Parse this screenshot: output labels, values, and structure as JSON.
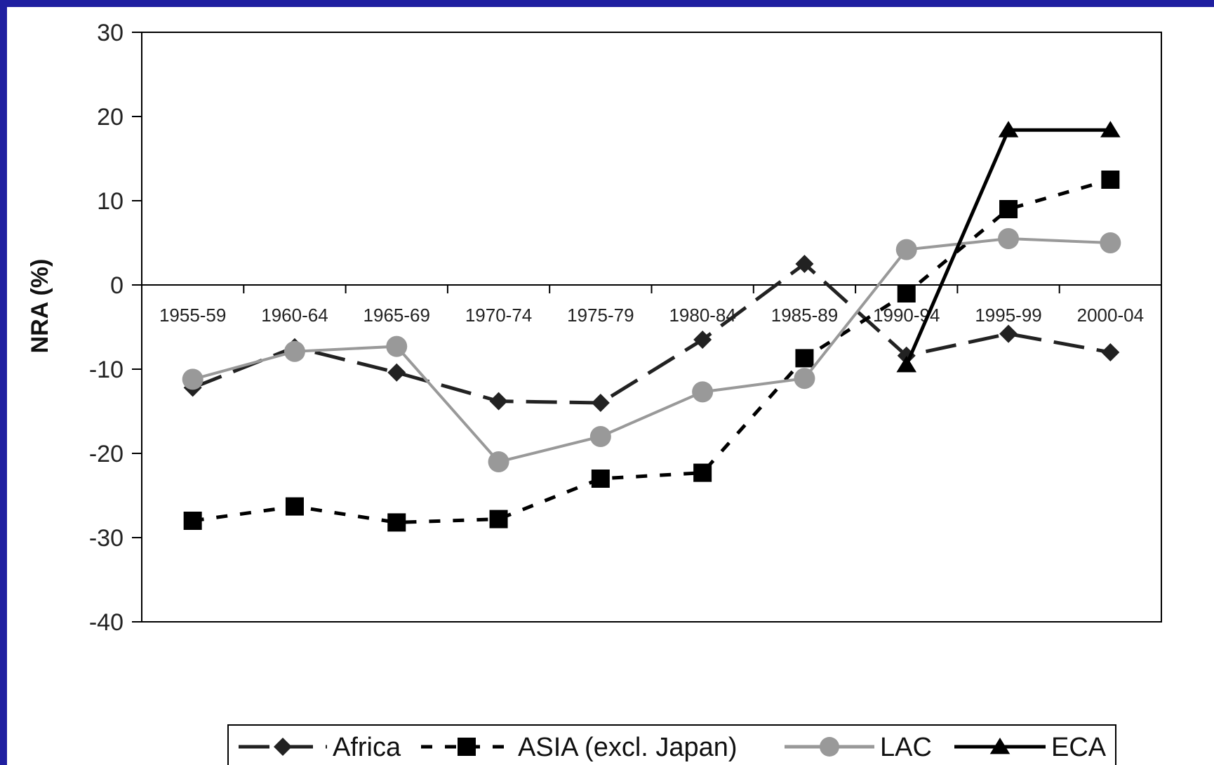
{
  "chart_data": {
    "type": "line",
    "ylabel": "NRA (%)",
    "xlabel": "",
    "ylim": [
      -40,
      30
    ],
    "yticks": [
      -40,
      -30,
      -20,
      -10,
      0,
      10,
      20,
      30
    ],
    "categories": [
      "1955-59",
      "1960-64",
      "1965-69",
      "1970-74",
      "1975-79",
      "1980-84",
      "1985-89",
      "1990-94",
      "1995-99",
      "2000-04"
    ],
    "grid": false,
    "legend_position": "bottom",
    "series": [
      {
        "name": "Africa",
        "values": [
          -12.2,
          -7.4,
          -10.4,
          -13.8,
          -14.0,
          -6.5,
          2.5,
          -8.4,
          -5.8,
          -8.0
        ],
        "color": "#222222",
        "dash": "long-dash",
        "marker": "diamond"
      },
      {
        "name": "ASIA (excl. Japan)",
        "values": [
          -28.0,
          -26.3,
          -28.2,
          -27.8,
          -23.0,
          -22.3,
          -8.7,
          -1.0,
          9.0,
          12.5
        ],
        "color": "#000000",
        "dash": "short-dash",
        "marker": "square"
      },
      {
        "name": "LAC",
        "values": [
          -11.2,
          -7.9,
          -7.3,
          -21.0,
          -18.0,
          -12.7,
          -11.1,
          4.2,
          5.5,
          5.0
        ],
        "color": "#999999",
        "dash": "solid",
        "marker": "circle"
      },
      {
        "name": "ECA",
        "values": [
          null,
          null,
          null,
          null,
          null,
          null,
          null,
          -9.5,
          18.4,
          18.4
        ],
        "color": "#000000",
        "dash": "solid",
        "marker": "triangle"
      }
    ]
  }
}
